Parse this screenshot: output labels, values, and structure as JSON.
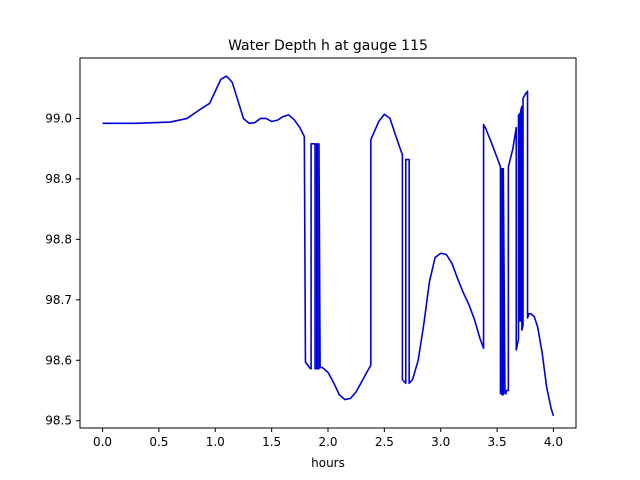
{
  "chart_data": {
    "type": "line",
    "title": "Water Depth h at gauge 115",
    "xlabel": "hours",
    "ylabel": "",
    "xlim": [
      -0.2,
      4.2
    ],
    "ylim": [
      98.488,
      99.1
    ],
    "xticks": [
      0.0,
      0.5,
      1.0,
      1.5,
      2.0,
      2.5,
      3.0,
      3.5,
      4.0
    ],
    "xtick_labels": [
      "0.0",
      "0.5",
      "1.0",
      "1.5",
      "2.0",
      "2.5",
      "3.0",
      "3.5",
      "4.0"
    ],
    "yticks": [
      98.5,
      98.6,
      98.7,
      98.8,
      98.9,
      99.0
    ],
    "ytick_labels": [
      "98.5",
      "98.6",
      "98.7",
      "98.8",
      "98.9",
      "99.0"
    ],
    "grid": false,
    "series": [
      {
        "color": "#0000dd",
        "x": [
          0.0,
          0.3,
          0.6,
          0.75,
          0.85,
          0.95,
          1.0,
          1.05,
          1.1,
          1.15,
          1.2,
          1.25,
          1.3,
          1.35,
          1.4,
          1.45,
          1.5,
          1.55,
          1.6,
          1.65,
          1.7,
          1.75,
          1.79,
          1.8,
          1.84,
          1.85,
          1.85,
          1.885,
          1.885,
          1.9,
          1.9,
          1.905,
          1.905,
          1.92,
          1.92,
          1.93,
          1.95,
          2.0,
          2.05,
          2.1,
          2.15,
          2.2,
          2.25,
          2.3,
          2.35,
          2.38,
          2.38,
          2.45,
          2.5,
          2.55,
          2.6,
          2.65,
          2.66,
          2.66,
          2.69,
          2.69,
          2.72,
          2.72,
          2.75,
          2.8,
          2.85,
          2.9,
          2.95,
          3.0,
          3.05,
          3.1,
          3.15,
          3.2,
          3.25,
          3.3,
          3.35,
          3.38,
          3.38,
          3.4,
          3.45,
          3.5,
          3.53,
          3.53,
          3.535,
          3.535,
          3.545,
          3.545,
          3.555,
          3.555,
          3.57,
          3.58,
          3.58,
          3.6,
          3.6,
          3.64,
          3.67,
          3.67,
          3.69,
          3.69,
          3.7,
          3.7,
          3.71,
          3.71,
          3.72,
          3.72,
          3.73,
          3.73,
          3.75,
          3.77,
          3.77,
          3.78,
          3.78,
          3.8,
          3.83,
          3.86,
          3.9,
          3.94,
          3.98,
          4.0
        ],
        "y": [
          98.992,
          98.992,
          98.994,
          99.0,
          99.013,
          99.025,
          99.045,
          99.065,
          99.07,
          99.06,
          99.03,
          99.0,
          98.992,
          98.993,
          99.0,
          99.0,
          98.995,
          98.997,
          99.003,
          99.006,
          98.998,
          98.985,
          98.97,
          98.597,
          98.587,
          98.586,
          98.958,
          98.958,
          98.586,
          98.586,
          98.958,
          98.958,
          98.586,
          98.586,
          98.958,
          98.588,
          98.588,
          98.58,
          98.563,
          98.543,
          98.535,
          98.537,
          98.548,
          98.565,
          98.582,
          98.592,
          98.965,
          98.995,
          99.007,
          99.0,
          98.972,
          98.945,
          98.94,
          98.568,
          98.562,
          98.932,
          98.932,
          98.562,
          98.568,
          98.6,
          98.66,
          98.73,
          98.77,
          98.777,
          98.775,
          98.76,
          98.735,
          98.712,
          98.692,
          98.667,
          98.635,
          98.62,
          98.99,
          98.983,
          98.96,
          98.935,
          98.92,
          98.545,
          98.545,
          98.917,
          98.917,
          98.543,
          98.543,
          98.917,
          98.545,
          98.545,
          98.55,
          98.55,
          98.92,
          98.95,
          98.985,
          98.617,
          98.635,
          99.005,
          99.008,
          98.665,
          98.665,
          99.013,
          99.02,
          98.65,
          98.658,
          99.033,
          99.04,
          99.045,
          98.67,
          98.675,
          98.677,
          98.677,
          98.672,
          98.655,
          98.612,
          98.555,
          98.52,
          98.508
        ]
      }
    ]
  }
}
